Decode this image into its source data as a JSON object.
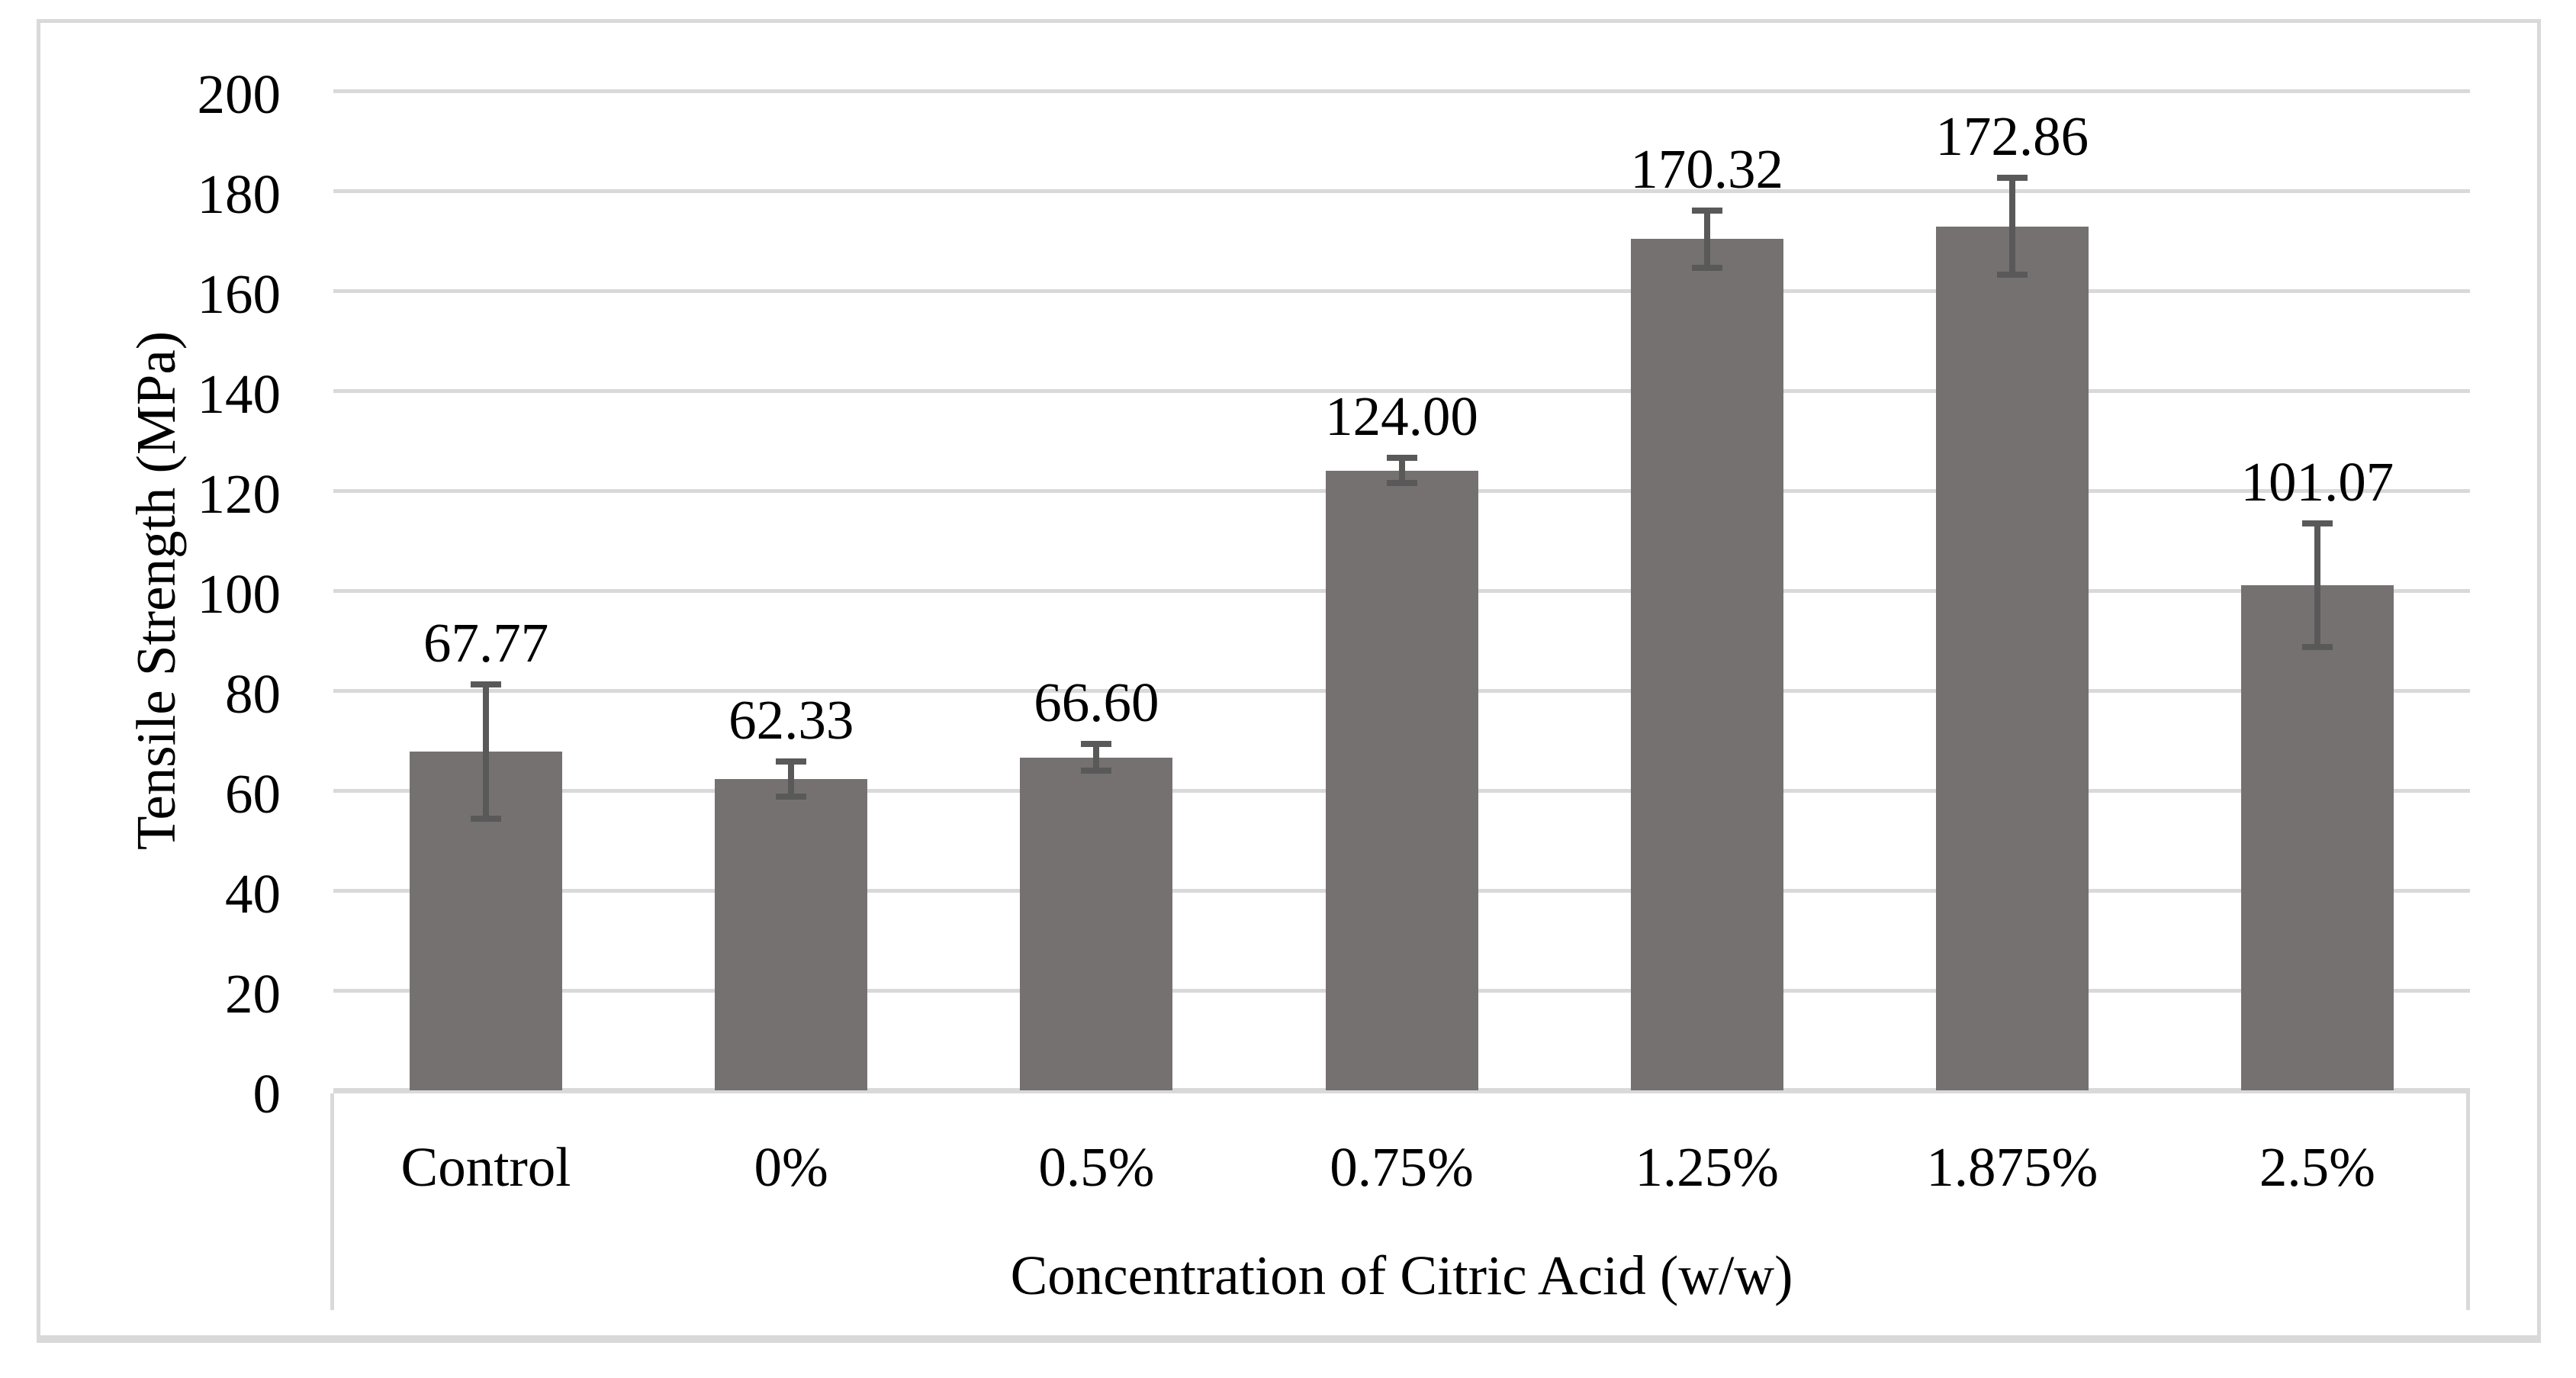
{
  "chart_data": {
    "type": "bar",
    "categories": [
      "Control",
      "0%",
      "0.5%",
      "0.75%",
      "1.25%",
      "1.875%",
      "2.5%"
    ],
    "values": [
      67.77,
      62.33,
      66.6,
      124.0,
      170.32,
      172.86,
      101.07
    ],
    "data_labels": [
      "67.77",
      "62.33",
      "66.60",
      "124.00",
      "170.32",
      "172.86",
      "101.07"
    ],
    "error_bars": [
      14.0,
      4.1,
      3.3,
      3.1,
      6.3,
      10.3,
      13.0
    ],
    "xlabel": "Concentration of Citric Acid (w/w)",
    "ylabel": "Tensile Strength (MPa)",
    "ylim": [
      0,
      200
    ],
    "yticks": [
      0,
      20,
      40,
      60,
      80,
      100,
      120,
      140,
      160,
      180,
      200
    ],
    "legend": "none",
    "grid": true,
    "colors": {
      "bar": "#767171",
      "error_bar": "#595959",
      "gridline": "#d9d9d9",
      "zero_line": "#d9d9d9",
      "figure_border": "#d9d9d9",
      "text": "#000000",
      "background": "#ffffff"
    }
  }
}
